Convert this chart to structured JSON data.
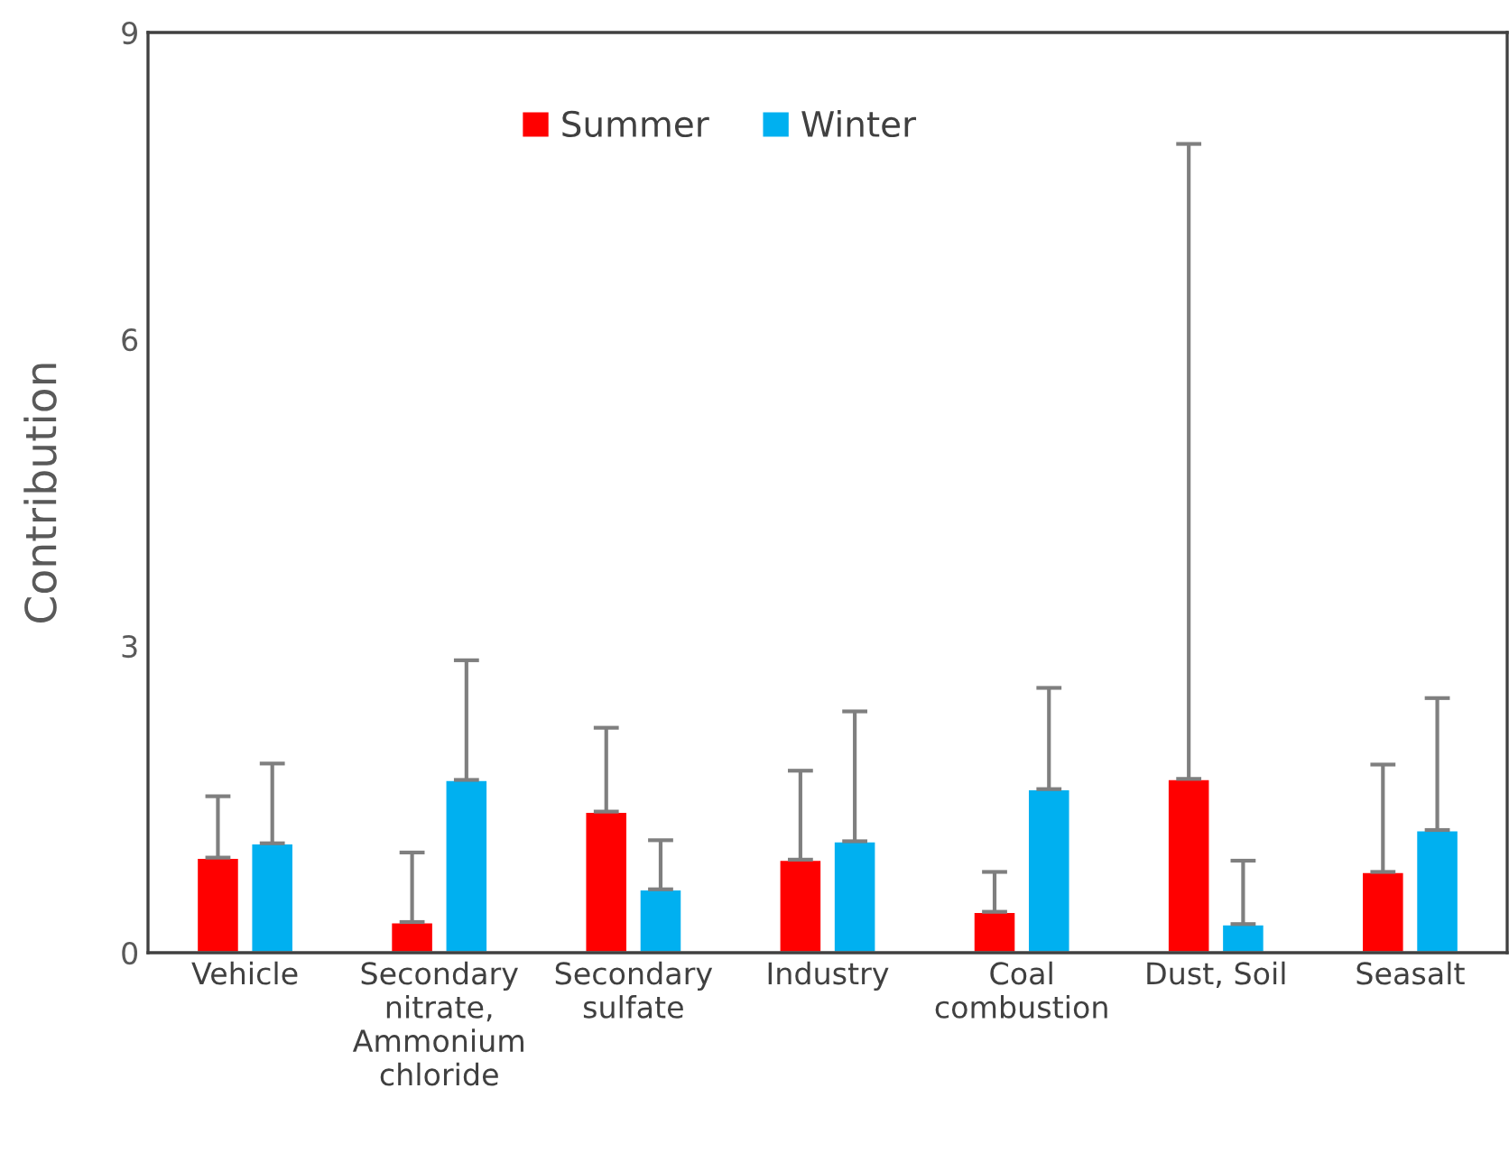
{
  "chart_data": {
    "type": "bar",
    "ylabel": "Contribution",
    "categories": [
      "Vehicle",
      "Secondary\nnitrate,\nAmmonium\nchloride",
      "Secondary\nsulfate",
      "Industry",
      "Coal\ncombustion",
      "Dust, Soil",
      "Seasalt"
    ],
    "series": [
      {
        "name": "Summer",
        "color": "#ff0000",
        "values": [
          0.93,
          0.3,
          1.38,
          0.91,
          0.4,
          1.7,
          0.79
        ],
        "errors": [
          [
            0.93,
            1.53
          ],
          [
            0.3,
            0.98
          ],
          [
            1.38,
            2.2
          ],
          [
            0.91,
            1.78
          ],
          [
            0.4,
            0.79
          ],
          [
            1.7,
            7.91
          ],
          [
            0.79,
            1.84
          ]
        ]
      },
      {
        "name": "Winter",
        "color": "#00b0f0",
        "values": [
          1.07,
          1.69,
          0.62,
          1.09,
          1.6,
          0.28,
          1.2
        ],
        "errors": [
          [
            1.07,
            1.85
          ],
          [
            1.69,
            2.86
          ],
          [
            0.62,
            1.1
          ],
          [
            1.09,
            2.36
          ],
          [
            1.6,
            2.59
          ],
          [
            0.28,
            0.9
          ],
          [
            1.2,
            2.49
          ]
        ]
      }
    ],
    "ylim": [
      0,
      9
    ],
    "yticks": [
      0,
      3,
      6,
      9
    ],
    "grid": false,
    "legend": "top"
  }
}
